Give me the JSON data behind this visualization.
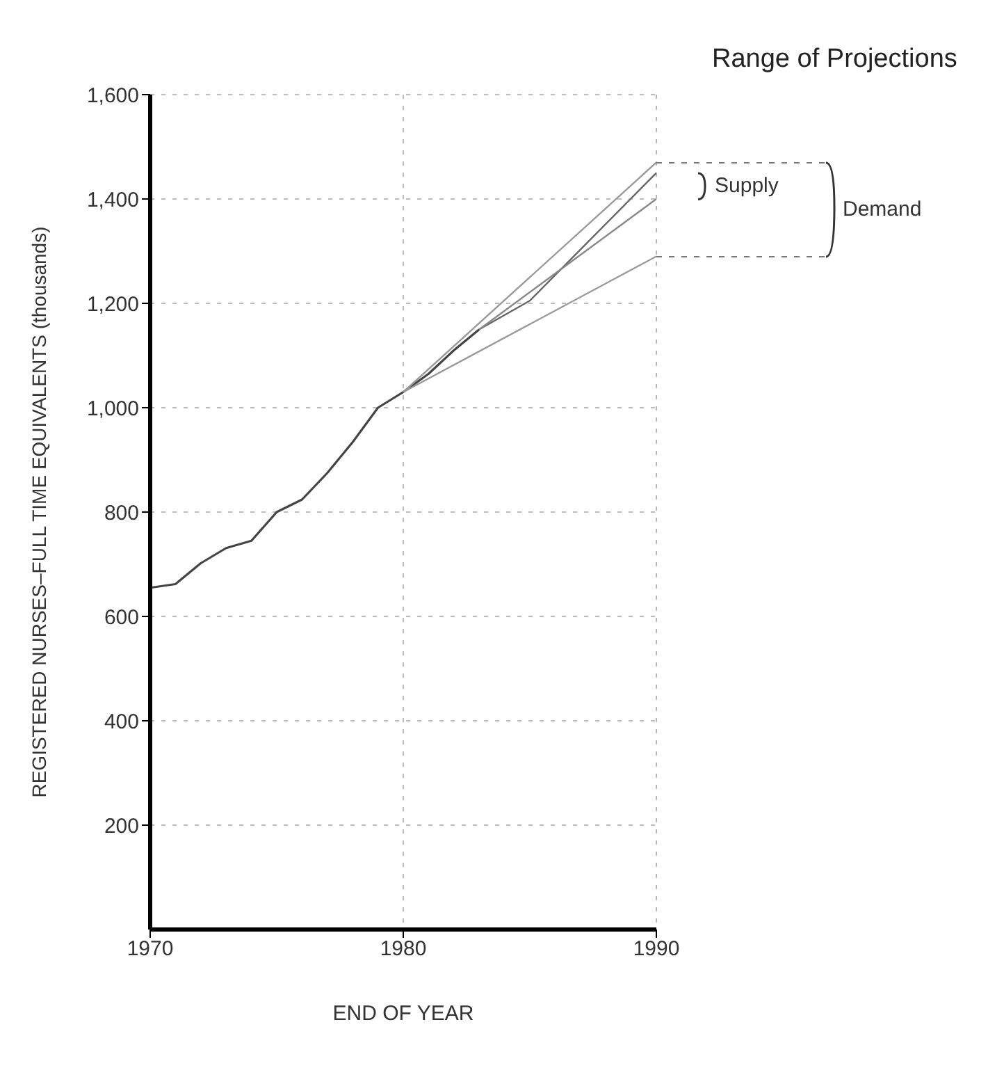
{
  "chart_data": {
    "type": "line",
    "title": "Range of Projections",
    "xlabel": "END OF YEAR",
    "ylabel": "REGISTERED NURSES–FULL TIME EQUIVALENTS (thousands)",
    "series": [
      {
        "color": "#444444",
        "x": [
          1970,
          1971,
          1972,
          1973,
          1974,
          1975,
          1976,
          1977,
          1978,
          1979,
          1980,
          1981,
          1982,
          1983
        ],
        "values": [
          655,
          662,
          702,
          731,
          745,
          800,
          824,
          875,
          934,
          1000,
          1030,
          1065,
          1110,
          1150
        ]
      },
      {
        "color": "#666666",
        "x": [
          1983,
          1985,
          1990
        ],
        "values": [
          1150,
          1205,
          1450
        ]
      },
      {
        "color": "#888888",
        "x": [
          1983,
          1990
        ],
        "values": [
          1150,
          1400
        ]
      },
      {
        "color": "#999999",
        "x": [
          1980,
          1990
        ],
        "values": [
          1030,
          1470
        ]
      },
      {
        "color": "#999999",
        "x": [
          1980,
          1990
        ],
        "values": [
          1030,
          1290
        ]
      }
    ],
    "annotations": [
      "Supply",
      "Demand"
    ],
    "xlim": [
      1970,
      1990
    ],
    "xticks": [
      1970,
      1980,
      1990
    ],
    "ylim": [
      0,
      1600
    ],
    "yticks": [
      {
        "value": 200,
        "label": "200"
      },
      {
        "value": 400,
        "label": "400"
      },
      {
        "value": 600,
        "label": "600"
      },
      {
        "value": 800,
        "label": "800"
      },
      {
        "value": 1000,
        "label": "1,000"
      },
      {
        "value": 1200,
        "label": "1,200"
      },
      {
        "value": 1400,
        "label": "1,400"
      },
      {
        "value": 1600,
        "label": "1,600"
      }
    ],
    "grid": true,
    "legend": false,
    "marker": "none",
    "line_style": "solid"
  }
}
